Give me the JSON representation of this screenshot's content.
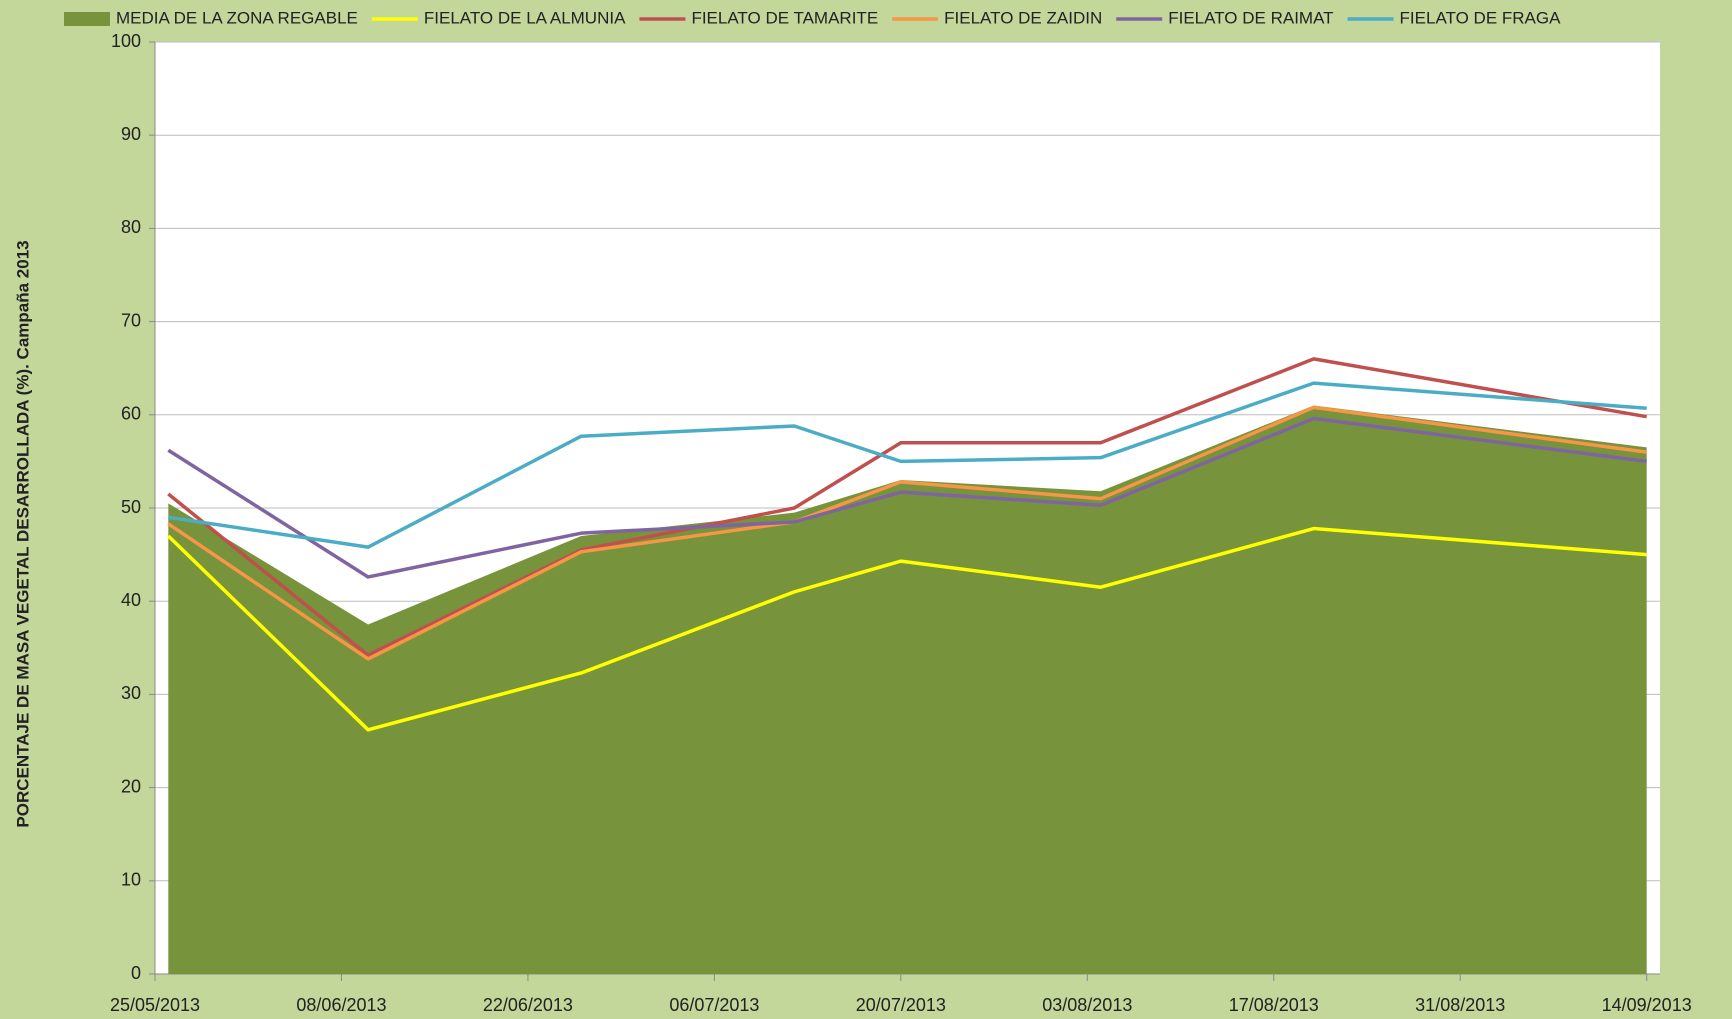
{
  "chart_data": {
    "type": "line",
    "y_label": "PORCENTAJE DE MASA VEGETAL DESARROLLADA (%). Campaña 2013",
    "x": [
      "26/05/2013",
      "10/06/2013",
      "26/06/2013",
      "12/07/2013",
      "20/07/2013",
      "04/08/2013",
      "20/08/2013",
      "14/09/2013"
    ],
    "xlim": [
      "25/05/2013",
      "15/09/2013"
    ],
    "xticks": [
      "25/05/2013",
      "08/06/2013",
      "22/06/2013",
      "06/07/2013",
      "20/07/2013",
      "03/08/2013",
      "17/08/2013",
      "31/08/2013",
      "14/09/2013"
    ],
    "ylim": [
      0,
      100
    ],
    "yticks": [
      0,
      10,
      20,
      30,
      40,
      50,
      60,
      70,
      80,
      90,
      100
    ],
    "grid": true,
    "legend": "top",
    "series": [
      {
        "name": "MEDIA DE LA ZONA REGABLE",
        "color": "#77933c",
        "area": true,
        "values": [
          50.5,
          37.5,
          47,
          49.5,
          53,
          51.8,
          61,
          56.5
        ]
      },
      {
        "name": "FIELATO DE LA ALMUNIA",
        "color": "#ffff00",
        "values": [
          47,
          26.2,
          32.3,
          41,
          44.3,
          41.5,
          47.8,
          45
        ]
      },
      {
        "name": "FIELATO DE TAMARITE",
        "color": "#c0504d",
        "values": [
          51.5,
          34.2,
          45.5,
          50,
          57,
          57,
          66,
          59.8
        ]
      },
      {
        "name": "FIELATO DE ZAIDIN",
        "color": "#f79646",
        "values": [
          48.3,
          33.8,
          45.3,
          48.5,
          52.8,
          51,
          60.8,
          56
        ]
      },
      {
        "name": "FIELATO DE RAIMAT",
        "color": "#8064a2",
        "values": [
          56.2,
          42.6,
          47.3,
          48.5,
          51.7,
          50.3,
          59.6,
          55
        ]
      },
      {
        "name": "FIELATO DE FRAGA",
        "color": "#4bacc6",
        "values": [
          49,
          45.8,
          57.7,
          58.8,
          55,
          55.4,
          63.4,
          60.7
        ]
      }
    ]
  }
}
